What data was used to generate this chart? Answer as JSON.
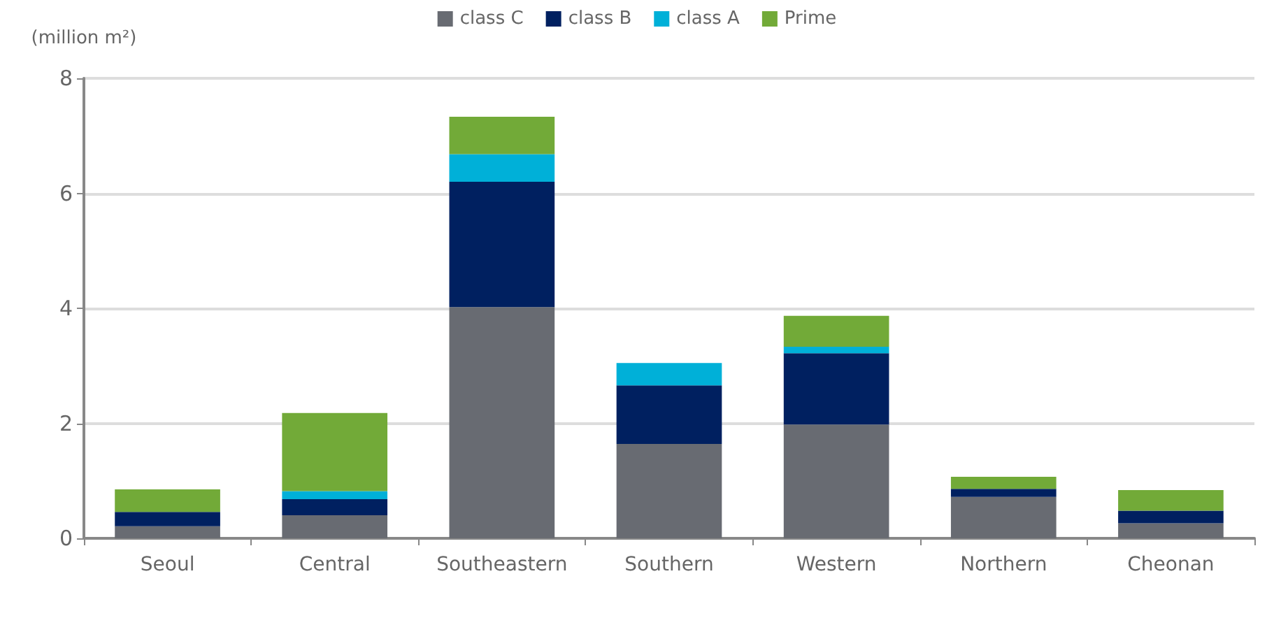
{
  "chart_data": {
    "type": "bar",
    "stacked": true,
    "ylabel": "(million m²)",
    "categories": [
      "Seoul",
      "Central",
      "Southeastern",
      "Southern",
      "Western",
      "Northern",
      "Cheonan"
    ],
    "series": [
      {
        "name": "class C",
        "color": "#686b72",
        "values": [
          0.21,
          0.4,
          4.02,
          1.64,
          1.98,
          0.72,
          0.26
        ]
      },
      {
        "name": "class B",
        "color": "#002060",
        "values": [
          0.25,
          0.28,
          2.18,
          1.02,
          1.24,
          0.14,
          0.22
        ]
      },
      {
        "name": "class A",
        "color": "#00b0d8",
        "values": [
          0,
          0.14,
          0.48,
          0.39,
          0.11,
          0,
          0
        ]
      },
      {
        "name": "Prime",
        "color": "#72aa38",
        "values": [
          0.39,
          1.36,
          0.65,
          0,
          0.54,
          0.21,
          0.36
        ]
      }
    ],
    "ylim": [
      0,
      8
    ],
    "yticks": [
      0,
      2,
      4,
      6,
      8
    ],
    "grid": "y",
    "legend": "top"
  }
}
